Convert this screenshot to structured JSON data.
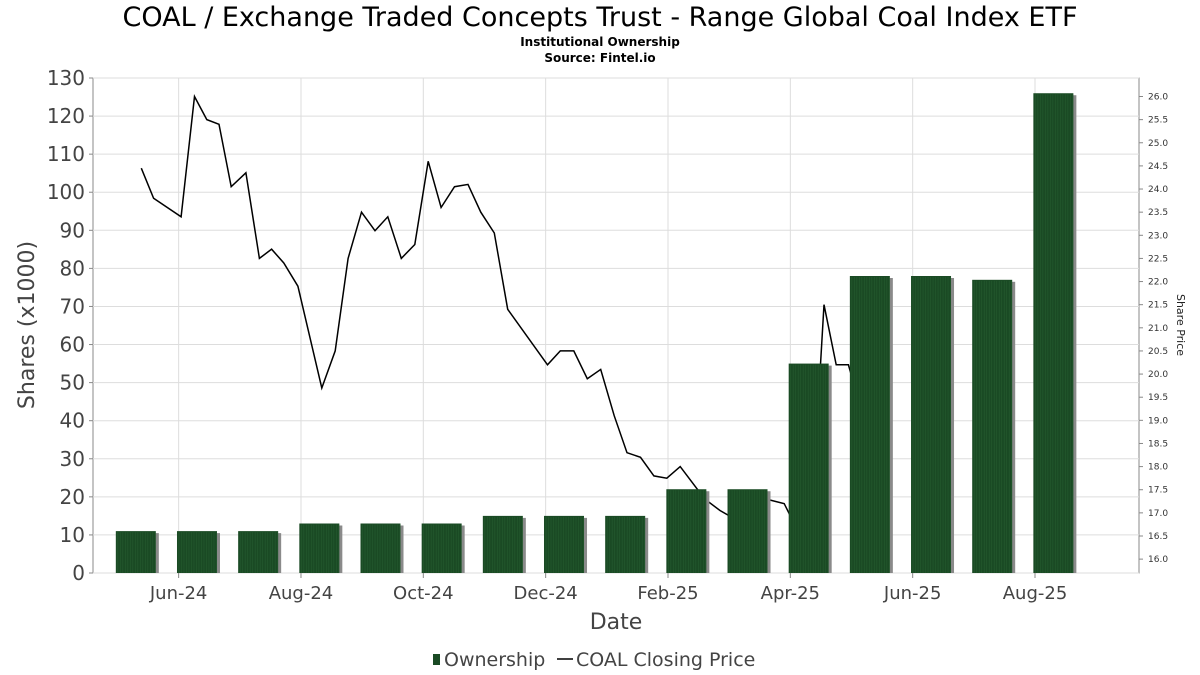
{
  "header": {
    "title": "COAL / Exchange Traded Concepts Trust - Range Global Coal Index ETF",
    "subtitle": "Institutional Ownership",
    "source": "Source: Fintel.io"
  },
  "chart_data": {
    "type": "bar",
    "xlabel": "Date",
    "ylabel": "Shares (x1000)",
    "y2label": "Share Price",
    "ylim": [
      0,
      130
    ],
    "yticks": [
      0,
      10,
      20,
      30,
      40,
      50,
      60,
      70,
      80,
      90,
      100,
      110,
      120,
      130
    ],
    "y2lim": [
      15.7,
      26.4
    ],
    "y2ticks": [
      "16.0",
      "16.5",
      "17.0",
      "17.5",
      "18.0",
      "18.5",
      "19.0",
      "19.5",
      "20.0",
      "20.5",
      "21.0",
      "21.5",
      "22.0",
      "22.5",
      "23.0",
      "23.5",
      "24.0",
      "24.5",
      "25.0",
      "25.5",
      "26.0"
    ],
    "xticks": [
      {
        "label": "Jun-24",
        "t": 0.7
      },
      {
        "label": "Aug-24",
        "t": 2.7
      },
      {
        "label": "Oct-24",
        "t": 4.7
      },
      {
        "label": "Dec-24",
        "t": 6.7
      },
      {
        "label": "Feb-25",
        "t": 8.7
      },
      {
        "label": "Apr-25",
        "t": 10.7
      },
      {
        "label": "Jun-25",
        "t": 12.7
      },
      {
        "label": "Aug-25",
        "t": 14.7
      }
    ],
    "t_range": [
      -0.7,
      16.4
    ],
    "grid": true,
    "legend_position": "bottom",
    "series": [
      {
        "name": "Ownership",
        "color": "#1a4a24",
        "bars": [
          {
            "t": 0.0,
            "value": 11
          },
          {
            "t": 1.0,
            "value": 11
          },
          {
            "t": 2.0,
            "value": 11
          },
          {
            "t": 3.0,
            "value": 13
          },
          {
            "t": 4.0,
            "value": 13
          },
          {
            "t": 5.0,
            "value": 13
          },
          {
            "t": 6.0,
            "value": 15
          },
          {
            "t": 7.0,
            "value": 15
          },
          {
            "t": 8.0,
            "value": 15
          },
          {
            "t": 9.0,
            "value": 22
          },
          {
            "t": 10.0,
            "value": 22
          },
          {
            "t": 11.0,
            "value": 55
          },
          {
            "t": 12.0,
            "value": 78
          },
          {
            "t": 13.0,
            "value": 78
          },
          {
            "t": 14.0,
            "value": 77
          },
          {
            "t": 15.0,
            "value": 126
          }
        ]
      },
      {
        "name": "COAL Closing Price",
        "color": "#000000",
        "points": [
          {
            "t": 0.09,
            "value": 24.45
          },
          {
            "t": 0.29,
            "value": 23.8
          },
          {
            "t": 0.74,
            "value": 23.4
          },
          {
            "t": 0.96,
            "value": 26.0
          },
          {
            "t": 1.16,
            "value": 25.5
          },
          {
            "t": 1.36,
            "value": 25.4
          },
          {
            "t": 1.56,
            "value": 24.05
          },
          {
            "t": 1.8,
            "value": 24.35
          },
          {
            "t": 2.02,
            "value": 22.5
          },
          {
            "t": 2.22,
            "value": 22.7
          },
          {
            "t": 2.42,
            "value": 22.4
          },
          {
            "t": 2.65,
            "value": 21.9
          },
          {
            "t": 3.04,
            "value": 19.7
          },
          {
            "t": 3.26,
            "value": 20.5
          },
          {
            "t": 3.47,
            "value": 22.5
          },
          {
            "t": 3.69,
            "value": 23.5
          },
          {
            "t": 3.91,
            "value": 23.1
          },
          {
            "t": 4.12,
            "value": 23.4
          },
          {
            "t": 4.34,
            "value": 22.5
          },
          {
            "t": 4.56,
            "value": 22.8
          },
          {
            "t": 4.78,
            "value": 24.6
          },
          {
            "t": 4.99,
            "value": 23.6
          },
          {
            "t": 5.21,
            "value": 24.05
          },
          {
            "t": 5.43,
            "value": 24.1
          },
          {
            "t": 5.64,
            "value": 23.5
          },
          {
            "t": 5.86,
            "value": 23.05
          },
          {
            "t": 6.08,
            "value": 21.4
          },
          {
            "t": 6.73,
            "value": 20.2
          },
          {
            "t": 6.94,
            "value": 20.5
          },
          {
            "t": 7.16,
            "value": 20.5
          },
          {
            "t": 7.38,
            "value": 19.9
          },
          {
            "t": 7.6,
            "value": 20.1
          },
          {
            "t": 7.82,
            "value": 19.1
          },
          {
            "t": 8.03,
            "value": 18.3
          },
          {
            "t": 8.25,
            "value": 18.2
          },
          {
            "t": 8.47,
            "value": 17.8
          },
          {
            "t": 8.68,
            "value": 17.75
          },
          {
            "t": 8.9,
            "value": 18.0
          },
          {
            "t": 9.3,
            "value": 17.3
          },
          {
            "t": 9.55,
            "value": 17.05
          },
          {
            "t": 9.75,
            "value": 16.9
          },
          {
            "t": 9.9,
            "value": 17.05
          },
          {
            "t": 10.1,
            "value": 16.95
          },
          {
            "t": 10.3,
            "value": 17.3
          },
          {
            "t": 10.6,
            "value": 17.2
          },
          {
            "t": 10.9,
            "value": 16.4
          },
          {
            "t": 11.1,
            "value": 18.1
          },
          {
            "t": 11.25,
            "value": 21.5
          },
          {
            "t": 11.45,
            "value": 20.2
          },
          {
            "t": 11.65,
            "value": 20.2
          },
          {
            "t": 11.8,
            "value": 19.5
          },
          {
            "t": 11.95,
            "value": 19.6
          },
          {
            "t": 12.1,
            "value": 20.1
          },
          {
            "t": 12.35,
            "value": 20.4
          }
        ]
      }
    ]
  },
  "legend": {
    "ownership_label": "Ownership",
    "price_label": "COAL Closing Price"
  }
}
